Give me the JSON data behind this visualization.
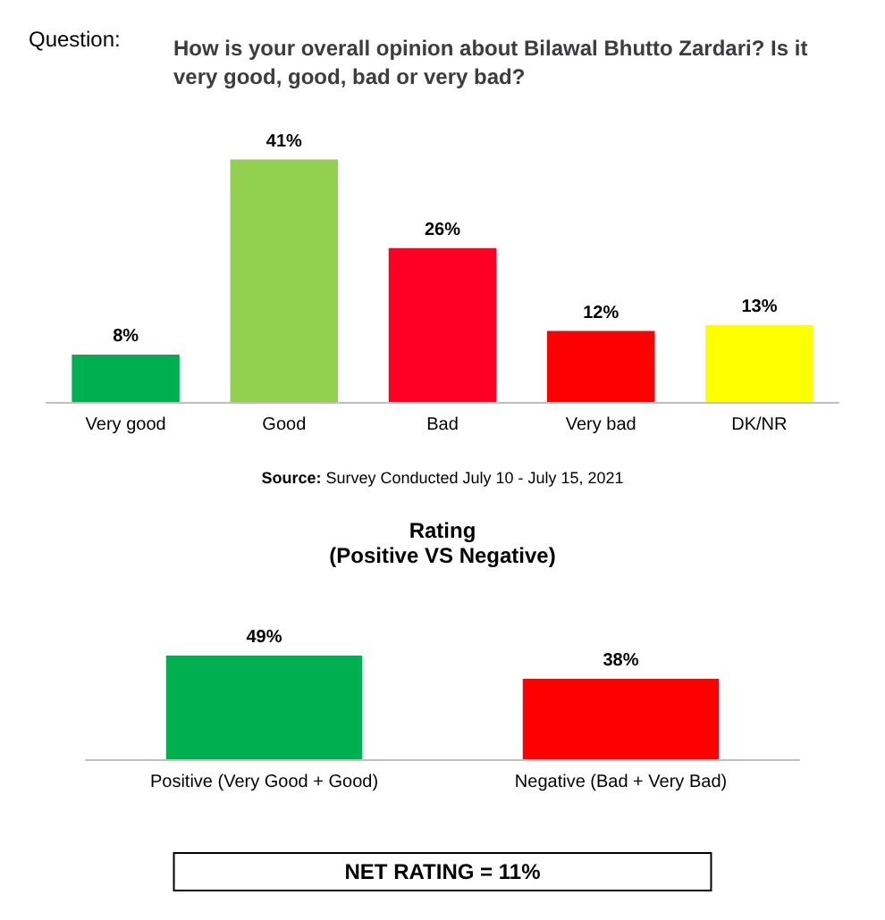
{
  "chart_data": [
    {
      "type": "bar",
      "title": "How is your overall opinion about Bilawal Bhutto Zardari? Is it very good, good, bad or very bad?",
      "categories": [
        "Very good",
        "Good",
        "Bad",
        "Very bad",
        "DK/NR"
      ],
      "values": [
        8,
        41,
        26,
        12,
        13
      ],
      "colors": [
        "#00b050",
        "#92d050",
        "#ff0024",
        "#ff0000",
        "#ffff00"
      ],
      "value_labels": [
        "8%",
        "41%",
        "26%",
        "12%",
        "13%"
      ],
      "annotations": [
        "Question:",
        "Source: Survey Conducted July 10 - July 15, 2021"
      ]
    },
    {
      "type": "bar",
      "title": "Rating",
      "subtitle": "(Positive VS Negative)",
      "categories": [
        "Positive (Very Good + Good)",
        "Negative (Bad + Very Bad)"
      ],
      "values": [
        49,
        38
      ],
      "colors": [
        "#00b050",
        "#ff0000"
      ],
      "value_labels": [
        "49%",
        "38%"
      ],
      "annotations": [
        "NET RATING = 11%"
      ]
    }
  ]
}
